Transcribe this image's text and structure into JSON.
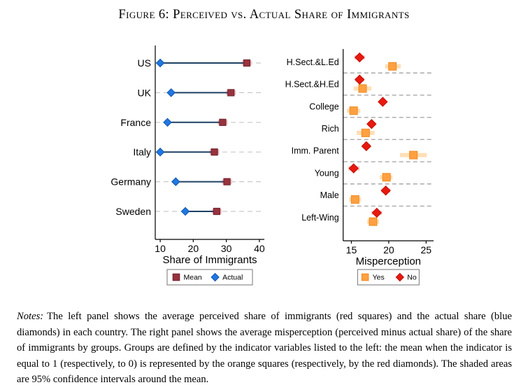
{
  "figure": {
    "title": "Figure 6: Perceived vs. Actual Share of Immigrants"
  },
  "chart_data": [
    {
      "type": "scatter",
      "panel": "left",
      "xlabel": "Share of Immigrants",
      "xticks": [
        10,
        20,
        30,
        40
      ],
      "xlim": [
        8.5,
        41.5
      ],
      "grid": "row-dashes",
      "grid_color": "#c9c9c9",
      "connector_color": "#1e4164",
      "categories": [
        "US",
        "UK",
        "France",
        "Italy",
        "Germany",
        "Sweden"
      ],
      "series": [
        {
          "name": "Mean",
          "marker": "square",
          "color": "#97333e",
          "border": "#6f222c",
          "ci_color": "#f3c3c9",
          "values": [
            36.2,
            31.4,
            28.9,
            26.4,
            30.2,
            27.1
          ],
          "ci": [
            [
              34.7,
              37.7
            ],
            [
              29.9,
              32.9
            ],
            [
              27.4,
              30.4
            ],
            [
              24.9,
              27.9
            ],
            [
              28.7,
              31.7
            ],
            [
              25.6,
              28.6
            ]
          ]
        },
        {
          "name": "Actual",
          "marker": "diamond",
          "color": "#1f78e0",
          "border": "#1356ad",
          "values": [
            10.0,
            13.3,
            12.2,
            10.0,
            14.7,
            17.6
          ]
        }
      ],
      "legend": [
        {
          "label": "Mean",
          "marker": "square",
          "color": "#97333e",
          "border": "#6f222c"
        },
        {
          "label": "Actual",
          "marker": "diamond",
          "color": "#1f78e0",
          "border": "#1356ad"
        }
      ]
    },
    {
      "type": "scatter",
      "panel": "right",
      "xlabel": "Misperception",
      "xticks": [
        15,
        20,
        25
      ],
      "xlim": [
        13.9,
        26.0
      ],
      "grid": "group-separators",
      "grid_color": "#a9a9a9",
      "categories": [
        "H.Sect.&L.Ed",
        "H.Sect.&H.Ed",
        "College",
        "Rich",
        "Imm. Parent",
        "Young",
        "Male",
        "Left-Wing"
      ],
      "series": [
        {
          "name": "No",
          "marker": "diamond",
          "color": "#e8190f",
          "border": "#c00e07",
          "ci_color": "#ffc6c0",
          "values": [
            16.1,
            16.1,
            19.2,
            17.7,
            17.0,
            15.3,
            19.6,
            18.4
          ],
          "ci": [
            [
              15.4,
              16.8
            ],
            [
              15.5,
              16.7
            ],
            [
              18.8,
              19.6
            ],
            [
              17.2,
              18.2
            ],
            [
              16.5,
              17.5
            ],
            [
              14.6,
              16.1
            ],
            [
              19.0,
              20.2
            ],
            [
              17.7,
              19.1
            ]
          ]
        },
        {
          "name": "Yes",
          "marker": "square",
          "color": "#ffa042",
          "border": "#ef8a1f",
          "ci_color": "#ffdfb6",
          "values": [
            20.5,
            16.5,
            15.3,
            16.9,
            23.3,
            19.7,
            15.5,
            17.9
          ],
          "ci": [
            [
              19.5,
              21.6
            ],
            [
              15.3,
              17.7
            ],
            [
              14.4,
              16.2
            ],
            [
              15.7,
              18.1
            ],
            [
              21.5,
              25.1
            ],
            [
              18.8,
              20.5
            ],
            [
              14.7,
              16.3
            ],
            [
              17.1,
              18.7
            ]
          ]
        }
      ],
      "legend": [
        {
          "label": "Yes",
          "marker": "square",
          "color": "#ffa042",
          "border": "#ef8a1f"
        },
        {
          "label": "No",
          "marker": "diamond",
          "color": "#e8190f",
          "border": "#c00e07"
        }
      ]
    }
  ],
  "notes": {
    "label": "Notes:",
    "text": "The left panel shows the average perceived share of immigrants (red squares) and the actual share (blue diamonds) in each country. The right panel shows the average misperception (perceived minus actual share) of the share of immigrants by groups. Groups are defined by the indicator variables listed to the left: the mean when the indicator is equal to 1 (respectively, to 0) is represented by the orange squares (respectively, by the red diamonds). The shaded areas are 95% confidence intervals around the mean."
  }
}
